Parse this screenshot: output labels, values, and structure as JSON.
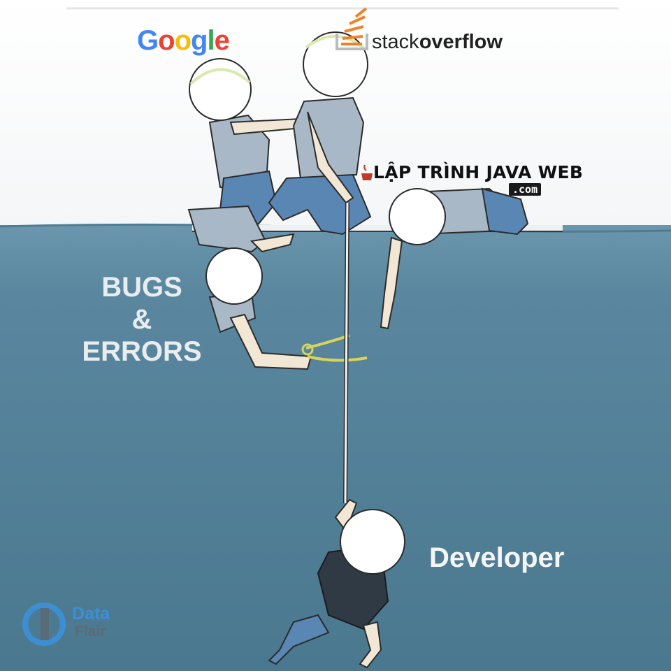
{
  "logos": {
    "google": {
      "letters": [
        "G",
        "o",
        "o",
        "g",
        "l",
        "e"
      ],
      "colors": [
        "#4285F4",
        "#EA4335",
        "#FBBC05",
        "#4285F4",
        "#34A853",
        "#EA4335"
      ]
    },
    "stackoverflow": {
      "part1": "stack",
      "part2": "overflow",
      "accent": "#F48024"
    },
    "lap_trinh_java_web": {
      "text": "LẬP TRÌNH JAVA WEB",
      "suffix": ".com"
    },
    "dataflair": {
      "word1": "Data",
      "word2": "Flair",
      "color": "#3d8fd4"
    }
  },
  "labels": {
    "bugs_line1": "BUGS",
    "bugs_line2": "&",
    "bugs_line3": "ERRORS",
    "developer": "Developer"
  },
  "colors": {
    "sky": "#ffffff",
    "water_top": "#5d8aa1",
    "water_bottom": "#4c7a92",
    "rope": "#f2f2f2",
    "shirt": "#a9b8c6",
    "jeans": "#5a86b3",
    "skin": "#f1e7d4",
    "developer_shirt": "#2f3a44",
    "scissors": "#d8d35a"
  }
}
